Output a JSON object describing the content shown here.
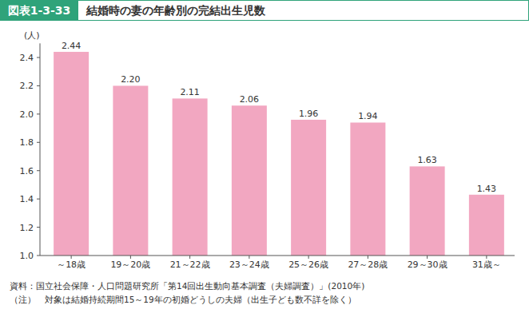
{
  "chart_data": {
    "type": "bar",
    "figure_label": "図表1-3-33",
    "title": "結婚時の妻の年齢別の完結出生児数",
    "y_label": "(人)",
    "categories": [
      "～18歳",
      "19～20歳",
      "21～22歳",
      "23～24歳",
      "25～26歳",
      "27～28歳",
      "29～30歳",
      "31歳～"
    ],
    "values": [
      2.44,
      2.2,
      2.11,
      2.06,
      1.96,
      1.94,
      1.63,
      1.43
    ],
    "value_labels": [
      "2.44",
      "2.20",
      "2.11",
      "2.06",
      "1.96",
      "1.94",
      "1.63",
      "1.43"
    ],
    "color": "#f2a7c1",
    "ylim": [
      1.0,
      2.5
    ],
    "yticks": [
      {
        "value": 1.0,
        "label": "1.0"
      },
      1.2,
      1.4,
      1.6,
      1.8,
      {
        "value": 2.0,
        "label": "2.0"
      },
      2.2,
      2.4
    ],
    "grid": false,
    "data_labels": true,
    "annotations": [
      "資料：国立社会保障・人口問題研究所「第14回出生動向基本調査（夫婦調査）」(2010年)",
      "（注）　対象は結婚持続期間15～19年の初婚どうしの夫婦（出生子ども数不詳を除く）"
    ]
  }
}
